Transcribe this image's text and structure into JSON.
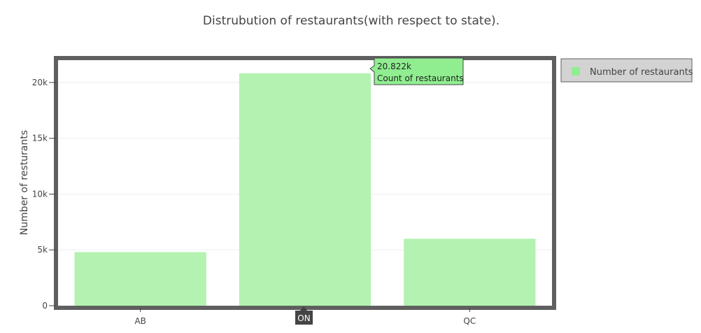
{
  "chart_data": {
    "type": "bar",
    "title": "Distrubution of restaurants(with respect to state).",
    "xlabel": "",
    "ylabel": "Number of resturants",
    "categories": [
      "AB",
      "ON",
      "QC"
    ],
    "series": [
      {
        "name": "Number of restaurants",
        "values": [
          4800,
          20822,
          6000
        ]
      }
    ],
    "ylim": [
      0,
      22000
    ],
    "yticks": [
      0,
      5000,
      10000,
      15000,
      20000
    ],
    "ytick_labels": [
      "0",
      "5k",
      "10k",
      "15k",
      "20k"
    ],
    "grid": true,
    "legend": "top-right",
    "colors": {
      "bar": "#b3f2b0",
      "frame": "#5f5f5f",
      "legend_bg": "#d3d3d3",
      "tooltip_bg": "#90ee90",
      "hover_label_bg": "#444444"
    },
    "tooltip": {
      "value": "20.822k",
      "label": "Count of restaurants",
      "category_index": 1
    },
    "hover_axis_label": "ON"
  }
}
